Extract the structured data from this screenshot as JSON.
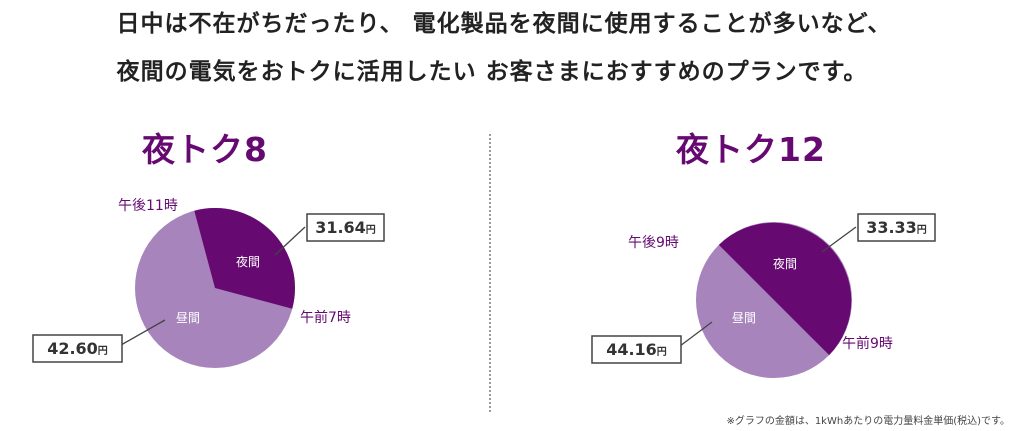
{
  "headline": {
    "line1": "日中は不在がちだったり、 電化製品を夜間に使用することが多いなど、",
    "line2": "夜間の電気をおトクに活用したい お客さまにおすすめのプランです。"
  },
  "colors": {
    "night": "#660a72",
    "day": "#a884bd",
    "title": "#660a72",
    "time_label": "#660a72",
    "price_text": "#333333",
    "slice_text": "#ffffff"
  },
  "footnote": "※グラフの金額は、1kWhあたりの電力量料金単価(税込)です。",
  "chart_data": [
    {
      "type": "pie",
      "title": "夜トク8",
      "slices": [
        {
          "label": "夜間",
          "price_value": 31.64,
          "price_text": "31.64",
          "unit": "円",
          "hours": 8
        },
        {
          "label": "昼間",
          "price_value": 42.6,
          "price_text": "42.60",
          "unit": "円",
          "hours": 16
        }
      ],
      "boundaries": {
        "night_start": "午後11時",
        "night_end": "午前7時"
      },
      "night_start_hour": 23,
      "night_end_hour": 7
    },
    {
      "type": "pie",
      "title": "夜トク12",
      "slices": [
        {
          "label": "夜間",
          "price_value": 33.33,
          "price_text": "33.33",
          "unit": "円",
          "hours": 12
        },
        {
          "label": "昼間",
          "price_value": 44.16,
          "price_text": "44.16",
          "unit": "円",
          "hours": 12
        }
      ],
      "boundaries": {
        "night_start": "午後9時",
        "night_end": "午前9時"
      },
      "night_start_hour": 21,
      "night_end_hour": 9
    }
  ]
}
